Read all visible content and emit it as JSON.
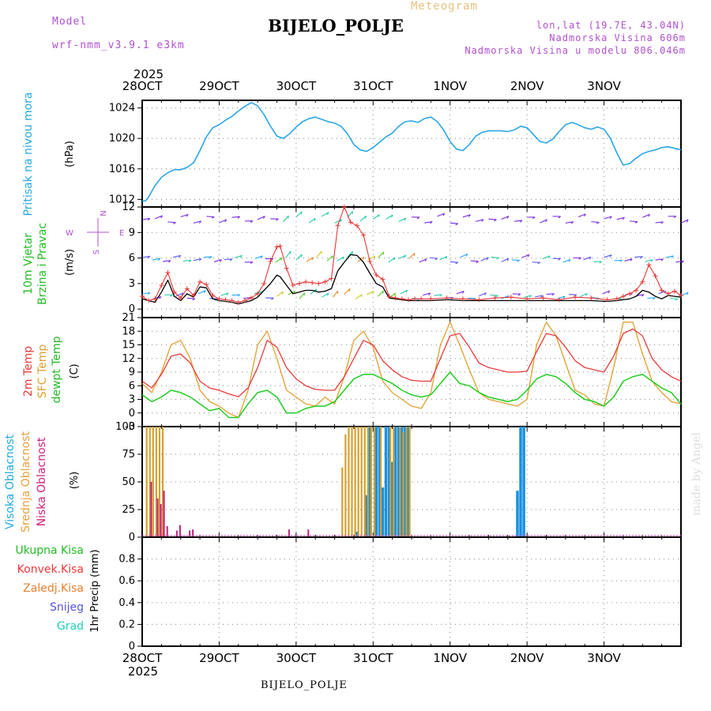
{
  "header": {
    "top_label": "Meteogram",
    "model_label": "Model",
    "model_name": "wrf-nmm_v3.9.1  e3km",
    "station": "BIJELO_POLJE",
    "coords": "lon,lat (19.7E, 43.04N)",
    "elevation": "Nadmorska Visina 606m",
    "model_elevation": "Nadmorska Visina u modelu 806.046m",
    "footer_station": "BIJELO_POLJE",
    "watermark": "made by Angel"
  },
  "colors": {
    "pressure": "#2aa6e6",
    "temp2m": "#e83a3a",
    "sfc_temp": "#e0a030",
    "dewpt": "#22cc22",
    "high_cloud": "#1a90e0",
    "mid_cloud": "#d4a030",
    "low_cloud": "#c0207a",
    "wind_line": "#000000",
    "gust": "#e83a3a",
    "label_cyan": "#22aadd",
    "label_purple": "#b050d0",
    "label_orange": "#e8a040"
  },
  "chart_data": [
    {
      "id": "pressure",
      "type": "line",
      "title": "Pritisak na nivou mora",
      "ylabel": "(hPa)",
      "ylim": [
        1011,
        1025
      ],
      "yticks": [
        1012,
        1016,
        1020,
        1024
      ],
      "x_unit": "hours since 28OCT 00UTC",
      "series": [
        {
          "name": "Pritisak na nivou mora",
          "x": [
            0,
            1,
            2,
            4,
            6,
            8,
            10,
            12,
            14,
            16,
            18,
            20,
            22,
            24,
            26,
            28,
            30,
            32,
            34,
            36,
            38,
            40,
            42,
            44,
            46,
            48,
            50,
            52,
            54,
            56,
            58,
            60,
            62,
            64,
            66,
            68,
            70,
            72,
            74,
            76,
            78,
            80,
            82,
            84,
            86,
            88,
            90,
            92,
            94,
            96,
            98,
            100,
            102,
            104,
            106,
            108,
            110,
            112,
            114,
            116,
            118,
            120,
            122,
            124,
            126,
            128,
            130,
            132,
            134,
            136,
            138,
            140,
            142,
            144,
            146,
            148,
            150,
            152,
            154,
            156,
            158,
            160,
            162,
            164,
            166,
            168
          ],
          "values": [
            1011.8,
            1011.8,
            1012.3,
            1013.8,
            1014.9,
            1015.5,
            1015.9,
            1015.9,
            1016.2,
            1016.8,
            1018.4,
            1020.2,
            1021.4,
            1021.8,
            1022.4,
            1022.9,
            1023.6,
            1024.2,
            1024.7,
            1024.3,
            1023.1,
            1021.6,
            1020.3,
            1020.0,
            1020.6,
            1021.5,
            1022.2,
            1022.6,
            1022.8,
            1022.5,
            1022.2,
            1022.0,
            1021.6,
            1020.6,
            1019.2,
            1018.5,
            1018.3,
            1018.8,
            1019.5,
            1020.2,
            1020.7,
            1021.6,
            1022.2,
            1022.3,
            1022.1,
            1022.6,
            1022.8,
            1022.2,
            1021.1,
            1019.6,
            1018.6,
            1018.4,
            1019.2,
            1020.3,
            1020.8,
            1021.0,
            1021.0,
            1021.0,
            1020.9,
            1021.1,
            1021.6,
            1021.4,
            1020.5,
            1019.6,
            1019.4,
            1019.9,
            1020.9,
            1021.8,
            1022.1,
            1021.8,
            1021.4,
            1021.2,
            1021.5,
            1021.2,
            1020.0,
            1018.1,
            1016.5,
            1016.7,
            1017.4,
            1018.0,
            1018.3,
            1018.5,
            1018.8,
            1018.9,
            1018.7,
            1018.5
          ]
        }
      ]
    },
    {
      "id": "wind",
      "type": "line",
      "title": "10m Vjetar Brzina i Pravac",
      "ylabel": "(m/s)",
      "ylim": [
        -1,
        12
      ],
      "yticks": [
        0,
        3,
        6,
        9,
        12
      ],
      "compass": [
        "N",
        "E",
        "S",
        "W"
      ],
      "series": [
        {
          "name": "Brzina",
          "x": [
            0,
            2,
            4,
            6,
            8,
            10,
            12,
            14,
            16,
            18,
            20,
            22,
            24,
            26,
            28,
            30,
            32,
            34,
            36,
            38,
            40,
            42,
            43,
            45,
            47,
            49,
            51,
            53,
            55,
            57,
            59,
            61,
            63,
            65,
            67,
            69,
            71,
            73,
            75,
            77,
            79,
            81,
            83,
            85,
            87,
            90,
            95,
            100,
            105,
            110,
            115,
            120,
            125,
            130,
            135,
            140,
            145,
            148,
            150,
            152,
            154,
            156,
            158,
            160,
            162,
            164,
            166,
            168
          ],
          "values": [
            1.2,
            1.0,
            0.8,
            2.0,
            3.4,
            1.5,
            1.0,
            1.8,
            1.4,
            2.6,
            2.5,
            1.2,
            1.0,
            0.9,
            0.8,
            0.6,
            0.8,
            1.0,
            1.4,
            2.2,
            3.0,
            4.0,
            3.8,
            2.8,
            1.8,
            2.0,
            2.2,
            2.2,
            2.0,
            2.1,
            2.4,
            4.5,
            5.5,
            6.4,
            6.3,
            5.5,
            4.2,
            3.0,
            2.6,
            1.3,
            1.2,
            1.1,
            1.0,
            1.0,
            1.0,
            1.0,
            1.1,
            1.0,
            1.0,
            1.0,
            1.0,
            1.0,
            1.0,
            1.0,
            1.0,
            1.0,
            0.9,
            1.0,
            1.1,
            1.2,
            1.5,
            2.2,
            2.0,
            1.5,
            1.2,
            1.6,
            1.5,
            1.4
          ]
        },
        {
          "name": "Udari",
          "x": [
            0,
            2,
            4,
            6,
            8,
            10,
            12,
            14,
            16,
            18,
            20,
            22,
            24,
            26,
            28,
            30,
            32,
            34,
            36,
            38,
            40,
            42,
            43,
            45,
            47,
            49,
            51,
            53,
            55,
            57,
            59,
            61,
            63,
            65,
            67,
            69,
            71,
            73,
            75,
            77,
            79,
            81,
            83,
            85,
            87,
            90,
            95,
            100,
            105,
            110,
            115,
            120,
            125,
            130,
            135,
            140,
            145,
            148,
            150,
            152,
            154,
            156,
            158,
            160,
            162,
            164,
            166,
            168
          ],
          "values": [
            1.5,
            1.0,
            1.2,
            2.8,
            4.3,
            2.0,
            1.3,
            2.4,
            1.6,
            3.2,
            2.9,
            1.6,
            1.2,
            1.1,
            1.0,
            0.8,
            1.0,
            1.3,
            1.8,
            3.0,
            5.6,
            7.3,
            7.4,
            4.8,
            2.8,
            3.0,
            3.2,
            3.1,
            3.0,
            3.2,
            3.6,
            9.8,
            12.0,
            10.2,
            9.8,
            8.7,
            5.6,
            4.0,
            3.5,
            1.5,
            1.3,
            1.2,
            1.1,
            1.2,
            1.2,
            1.2,
            1.3,
            1.2,
            1.1,
            1.3,
            1.4,
            1.2,
            1.3,
            1.1,
            1.4,
            1.3,
            1.1,
            1.2,
            1.5,
            1.8,
            2.2,
            3.2,
            5.2,
            3.9,
            2.2,
            1.8,
            2.1,
            1.6
          ]
        }
      ]
    },
    {
      "id": "temperature",
      "type": "line",
      "title": "2m Temp / SFC Temp / dewpt Temp",
      "ylabel": "(C)",
      "ylim": [
        -3,
        21
      ],
      "yticks": [
        -3,
        0,
        3,
        6,
        9,
        12,
        15,
        18,
        21
      ],
      "series": [
        {
          "name": "2m Temp",
          "x": [
            0,
            3,
            6,
            9,
            12,
            15,
            18,
            21,
            24,
            27,
            30,
            33,
            36,
            39,
            42,
            45,
            48,
            51,
            54,
            57,
            60,
            63,
            66,
            69,
            72,
            75,
            78,
            81,
            84,
            87,
            90,
            93,
            96,
            99,
            102,
            105,
            108,
            111,
            114,
            117,
            120,
            123,
            126,
            129,
            132,
            135,
            138,
            141,
            144,
            147,
            150,
            153,
            156,
            159,
            162,
            165,
            168
          ],
          "values": [
            7.0,
            5.5,
            8.5,
            12.5,
            13.0,
            11.0,
            7.0,
            5.5,
            5.0,
            4.2,
            3.6,
            5.5,
            10.0,
            16.0,
            14.5,
            10.0,
            7.5,
            6.0,
            5.2,
            5.0,
            5.0,
            8.0,
            12.0,
            16.0,
            15.0,
            11.5,
            9.5,
            8.0,
            7.2,
            7.0,
            7.0,
            12.0,
            17.0,
            17.5,
            14.5,
            11.0,
            10.0,
            9.5,
            9.0,
            9.0,
            9.2,
            13.5,
            17.5,
            17.0,
            14.5,
            11.5,
            10.0,
            9.5,
            9.0,
            12.5,
            17.5,
            18.5,
            17.0,
            12.0,
            9.5,
            8.0,
            7.0
          ]
        },
        {
          "name": "SFC Temp",
          "x": [
            0,
            3,
            6,
            9,
            12,
            15,
            18,
            21,
            24,
            27,
            30,
            33,
            36,
            39,
            42,
            45,
            48,
            51,
            54,
            57,
            60,
            63,
            66,
            69,
            72,
            75,
            78,
            81,
            84,
            87,
            90,
            93,
            96,
            99,
            102,
            105,
            108,
            111,
            114,
            117,
            120,
            123,
            126,
            129,
            132,
            135,
            138,
            141,
            144,
            147,
            150,
            153,
            156,
            159,
            162,
            165,
            168
          ],
          "values": [
            6.5,
            4.5,
            9.0,
            15.0,
            16.0,
            12.0,
            5.0,
            2.5,
            1.5,
            0.0,
            -1.0,
            5.0,
            15.0,
            18.0,
            12.0,
            5.0,
            3.5,
            2.0,
            1.5,
            3.5,
            2.0,
            8.0,
            16.0,
            18.0,
            14.5,
            7.0,
            4.5,
            3.0,
            1.5,
            1.0,
            4.5,
            15.0,
            20.0,
            15.0,
            9.5,
            4.5,
            3.0,
            2.5,
            2.0,
            1.5,
            3.0,
            15.0,
            20.0,
            17.0,
            11.0,
            5.0,
            4.0,
            2.0,
            1.5,
            10.0,
            20.0,
            20.0,
            13.0,
            7.0,
            4.5,
            2.5,
            2.0
          ]
        },
        {
          "name": "dewpt Temp",
          "x": [
            0,
            3,
            6,
            9,
            12,
            15,
            18,
            21,
            24,
            27,
            30,
            33,
            36,
            39,
            42,
            45,
            48,
            51,
            54,
            57,
            60,
            63,
            66,
            69,
            72,
            75,
            78,
            81,
            84,
            87,
            90,
            93,
            96,
            99,
            102,
            105,
            108,
            111,
            114,
            117,
            120,
            123,
            126,
            129,
            132,
            135,
            138,
            141,
            144,
            147,
            150,
            153,
            156,
            159,
            162,
            165,
            168
          ],
          "values": [
            4.0,
            2.5,
            3.5,
            5.0,
            4.5,
            3.5,
            2.0,
            0.5,
            1.0,
            -1.0,
            -1.0,
            2.0,
            4.5,
            5.0,
            3.5,
            0.0,
            0.0,
            1.0,
            1.5,
            1.5,
            2.5,
            5.0,
            7.5,
            8.5,
            8.5,
            7.5,
            6.5,
            5.0,
            4.0,
            3.5,
            4.0,
            6.5,
            9.0,
            6.5,
            6.0,
            4.5,
            3.5,
            3.0,
            2.5,
            3.0,
            5.0,
            7.5,
            8.5,
            8.0,
            6.5,
            4.5,
            3.0,
            2.5,
            1.5,
            3.5,
            7.0,
            8.0,
            8.5,
            7.0,
            5.5,
            4.5,
            2.0
          ]
        }
      ]
    },
    {
      "id": "clouds",
      "type": "bar",
      "title": "Visoka / Srednja / Niska Oblacnost",
      "ylabel": "(%)",
      "ylim": [
        0,
        100
      ],
      "yticks": [
        0,
        25,
        50,
        75,
        100
      ],
      "series": [
        {
          "name": "Visoka Oblacnost",
          "x": [
            67,
            70,
            71,
            73,
            74,
            75,
            76,
            77,
            78,
            79,
            80,
            81,
            82,
            83,
            117,
            118,
            119
          ],
          "values": [
            5,
            38,
            100,
            100,
            100,
            45,
            100,
            100,
            68,
            100,
            100,
            100,
            100,
            100,
            42,
            100,
            100
          ]
        },
        {
          "name": "Srednja Oblacnost",
          "x": [
            1,
            2,
            3,
            4,
            5,
            6,
            62,
            63,
            64,
            65,
            66,
            67,
            68,
            69,
            70,
            71,
            72,
            74,
            77,
            78,
            80,
            81,
            82,
            83
          ],
          "values": [
            100,
            100,
            100,
            100,
            100,
            100,
            63,
            93,
            100,
            100,
            100,
            100,
            100,
            100,
            100,
            100,
            100,
            100,
            100,
            100,
            100,
            95,
            100,
            100
          ],
          "x_offset_hours": 0.4
        },
        {
          "name": "Niska Oblacnost",
          "x": [
            2,
            4,
            5,
            6,
            7,
            10,
            11,
            14,
            15,
            45,
            51
          ],
          "values": [
            50,
            35,
            30,
            42,
            10,
            6,
            11,
            6,
            7,
            7,
            7
          ],
          "x_offset_hours": 0.8
        }
      ]
    },
    {
      "id": "precip",
      "type": "line",
      "title": "1hr Precip",
      "ylabel": "1hr Precip (mm)",
      "ylim": [
        0,
        1
      ],
      "yticks": [
        0,
        0.2,
        0.4,
        0.6,
        0.8
      ],
      "legend": [
        "Ukupna Kisa",
        "Konvek.Kisa",
        "Zaledj.Kisa",
        "Snijeg",
        "Grad"
      ],
      "series": [
        {
          "name": "Ukupna Kisa",
          "values": []
        },
        {
          "name": "Konvek.Kisa",
          "values": []
        },
        {
          "name": "Zaledj.Kisa",
          "values": []
        },
        {
          "name": "Snijeg",
          "values": []
        },
        {
          "name": "Grad",
          "values": []
        }
      ]
    }
  ],
  "x_axis": {
    "year": "2025",
    "range_hours": [
      0,
      168
    ],
    "tick_labels": [
      "28OCT",
      "29OCT",
      "30OCT",
      "31OCT",
      "1NOV",
      "2NOV",
      "3NOV"
    ]
  }
}
